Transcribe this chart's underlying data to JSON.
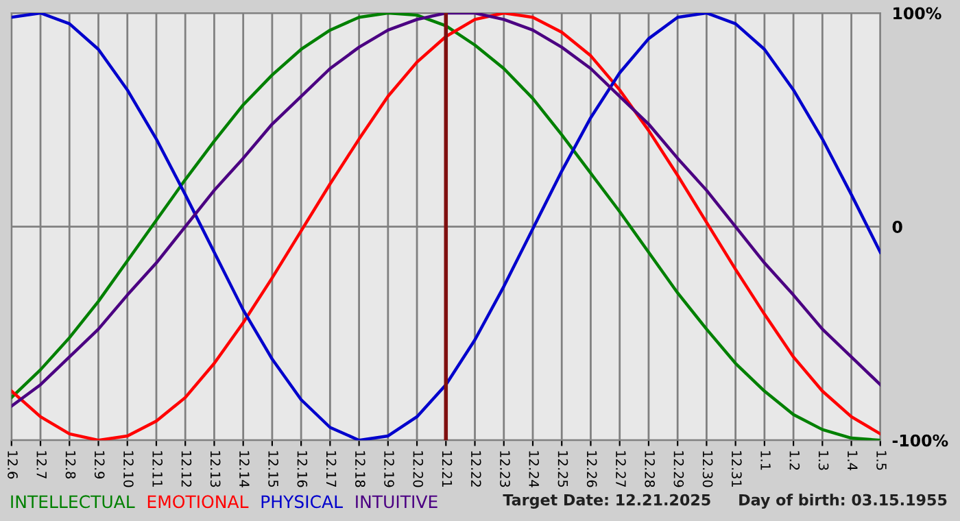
{
  "chart_data": {
    "type": "line",
    "categories": [
      "12.6",
      "12.7",
      "12.8",
      "12.9",
      "12.10",
      "12.11",
      "12.12",
      "12.13",
      "12.14",
      "12.15",
      "12.16",
      "12.17",
      "12.18",
      "12.19",
      "12.20",
      "12.21",
      "12.22",
      "12.23",
      "12.24",
      "12.25",
      "12.26",
      "12.27",
      "12.28",
      "12.29",
      "12.30",
      "12.31",
      "1.1",
      "1.2",
      "1.3",
      "1.4",
      "1.5"
    ],
    "series": [
      {
        "name": "INTELLECTUAL",
        "color": "#008000",
        "values": [
          -80,
          -67,
          -52,
          -35,
          -16,
          3,
          22,
          40,
          57,
          71,
          83,
          92,
          98,
          100,
          99,
          94,
          85,
          74,
          60,
          43,
          25,
          7,
          -12,
          -31,
          -48,
          -64,
          -77,
          -88,
          -95,
          -99,
          -100
        ]
      },
      {
        "name": "EMOTIONAL",
        "color": "#ff0000",
        "values": [
          -77,
          -89,
          -97,
          -100,
          -98,
          -91,
          -80,
          -64,
          -45,
          -24,
          -2,
          20,
          41,
          61,
          77,
          89,
          97,
          100,
          98,
          91,
          80,
          64,
          45,
          24,
          2,
          -20,
          -41,
          -61,
          -77,
          -89,
          -97
        ]
      },
      {
        "name": "PHYSICAL",
        "color": "#0000cc",
        "values": [
          98,
          100,
          95,
          83,
          64,
          41,
          15,
          -12,
          -39,
          -62,
          -81,
          -94,
          -100,
          -98,
          -89,
          -74,
          -53,
          -28,
          -1,
          26,
          51,
          72,
          88,
          98,
          100,
          95,
          83,
          64,
          41,
          15,
          -12
        ]
      },
      {
        "name": "INTUITIVE",
        "color": "#4b0082",
        "values": [
          -84,
          -74,
          -61,
          -48,
          -32,
          -17,
          0,
          17,
          32,
          48,
          61,
          74,
          84,
          92,
          97,
          100,
          100,
          97,
          92,
          84,
          74,
          61,
          48,
          32,
          17,
          0,
          -17,
          -32,
          -48,
          -61,
          -74
        ]
      }
    ],
    "ylim": [
      -100,
      100
    ],
    "yticks": [
      {
        "value": 100,
        "label": "100%"
      },
      0,
      {
        "value": -100,
        "label": "-100%"
      }
    ],
    "ref_lines": [
      {
        "axis": "x",
        "value": "12.21",
        "label": null,
        "color": "#7f1010"
      }
    ],
    "annotations": [
      "Target Date: 12.21.2025",
      "Day of birth: 03.15.1955"
    ],
    "grid": true,
    "legend": "bottom left",
    "marker": "none",
    "line_style": "solid"
  }
}
